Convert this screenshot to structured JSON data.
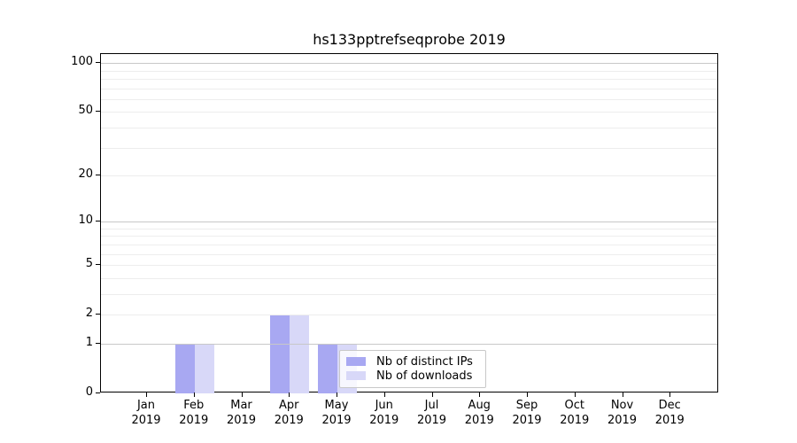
{
  "chart_data": {
    "type": "bar",
    "title": "hs133pptrefseqprobe 2019",
    "x": {
      "categories": [
        "Jan",
        "Feb",
        "Mar",
        "Apr",
        "May",
        "Jun",
        "Jul",
        "Aug",
        "Sep",
        "Oct",
        "Nov",
        "Dec"
      ],
      "year_label": "2019"
    },
    "series": [
      {
        "name": "Nb of distinct IPs",
        "color": "#a8a8f2",
        "values": [
          0,
          1,
          0,
          2,
          1,
          0,
          0,
          0,
          0,
          0,
          0,
          0
        ]
      },
      {
        "name": "Nb of downloads",
        "color": "#d8d8f8",
        "values": [
          0,
          1,
          0,
          2,
          1,
          0,
          0,
          0,
          0,
          0,
          0,
          0
        ]
      }
    ],
    "y": {
      "scale": "log1p",
      "ylim": [
        0,
        113.5
      ],
      "tick_values": [
        0,
        1,
        2,
        5,
        10,
        20,
        50,
        100
      ],
      "major_gridlines": [
        1,
        10,
        100
      ],
      "minor_gridlines": [
        2,
        3,
        4,
        5,
        6,
        7,
        8,
        9,
        20,
        30,
        40,
        50,
        60,
        70,
        80,
        90
      ]
    },
    "legend": {
      "position": "bottom-right"
    }
  },
  "colors": {
    "bar_distinct_ips": "#a8a8f2",
    "bar_downloads": "#d8d8f8",
    "grid_major": "#c8c8c8",
    "grid_minor": "#ededed",
    "axis": "#000000",
    "text": "#000000",
    "legend_border": "#c8c8c8",
    "legend_background": "rgba(255,255,255,0.8)"
  }
}
